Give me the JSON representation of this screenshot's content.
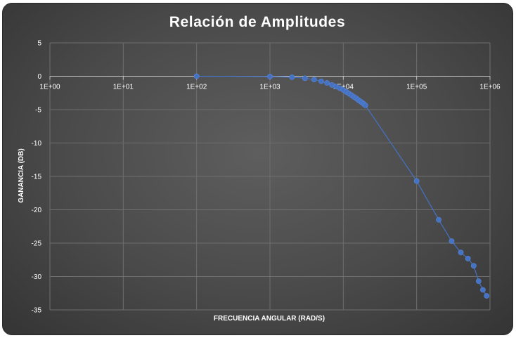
{
  "chart_data": {
    "type": "scatter",
    "title": "Relación de Amplitudes",
    "xlabel": "FRECUENCIA ANGULAR (RAD/S)",
    "ylabel": "GANANCIA (DB)",
    "x_scale": "log",
    "xlim": [
      1,
      1000000
    ],
    "ylim": [
      -35,
      5
    ],
    "x_ticks": [
      1,
      10,
      100,
      1000,
      10000,
      100000,
      1000000
    ],
    "x_tick_labels": [
      "1E+00",
      "1E+01",
      "1E+02",
      "1E+03",
      "1E+04",
      "1E+05",
      "1E+06"
    ],
    "y_ticks": [
      5,
      0,
      -5,
      -10,
      -15,
      -20,
      -25,
      -30,
      -35
    ],
    "y_tick_labels": [
      "5",
      "0",
      "-5",
      "-10",
      "-15",
      "-20",
      "-25",
      "-30",
      "-35"
    ],
    "grid": true,
    "legend": "none",
    "colors": {
      "series": "#4472c4",
      "grid": "#6e6e6e",
      "background": "#4a4a4a",
      "text": "#ffffff"
    },
    "series": [
      {
        "x": [
          100,
          1000,
          2000,
          3000,
          4000,
          5000,
          6000,
          7000,
          8000,
          9000,
          10000,
          11000,
          12000,
          13000,
          14000,
          15000,
          16000,
          17000,
          18000,
          19000,
          20000,
          100000,
          200000,
          300000,
          400000,
          500000,
          600000,
          700000,
          800000,
          900000
        ],
        "y": [
          0,
          -0.04,
          -0.15,
          -0.3,
          -0.5,
          -0.75,
          -1.0,
          -1.3,
          -1.55,
          -1.8,
          -2.05,
          -2.35,
          -2.6,
          -2.85,
          -3.1,
          -3.3,
          -3.55,
          -3.75,
          -3.95,
          -4.15,
          -4.35,
          -15.7,
          -21.5,
          -24.7,
          -26.4,
          -27.3,
          -28.4,
          -30.7,
          -32.0,
          -32.9
        ]
      }
    ]
  }
}
